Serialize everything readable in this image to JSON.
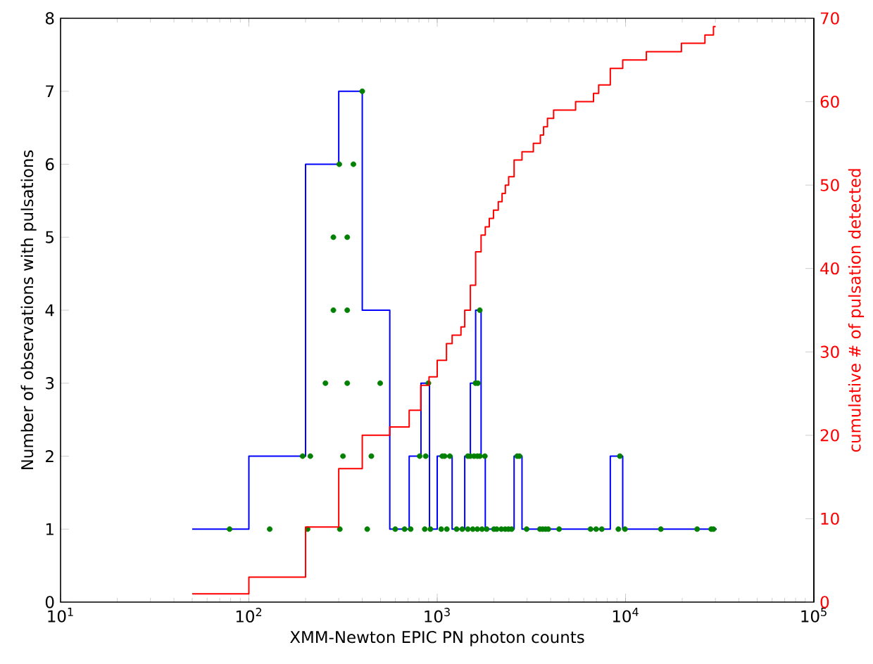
{
  "chart_data": {
    "type": "histogram",
    "xlabel": "XMM-Newton EPIC PN photon counts",
    "ylabel": "Number of observations with pulsations",
    "y2label": "cumulative # of pulsation detected",
    "log": "x",
    "xlim": [
      10,
      100000
    ],
    "xticks": [
      {
        "value": 10,
        "label": "10$^{1}$"
      },
      {
        "value": 100,
        "label": "10$^{2}$"
      },
      {
        "value": 1000,
        "label": "10$^{3}$"
      },
      {
        "value": 10000,
        "label": "10$^{4}$"
      },
      {
        "value": 100000,
        "label": "10$^{5}$"
      }
    ],
    "ylim": [
      0,
      8
    ],
    "yticks": [
      0,
      1,
      2,
      3,
      4,
      5,
      6,
      7,
      8
    ],
    "y2lim": [
      0,
      70
    ],
    "y2ticks": [
      0,
      10,
      20,
      30,
      40,
      50,
      60,
      70
    ],
    "series": [
      {
        "color": "#0000ff",
        "bins": [
          50,
          100,
          200,
          300,
          400,
          560,
          710,
          820,
          910,
          1000,
          1200,
          1400,
          1500,
          1600,
          1710,
          1800,
          2560,
          2820,
          8300,
          9660,
          30500
        ],
        "values": [
          1,
          2,
          6,
          7,
          4,
          1,
          2,
          3,
          1,
          2,
          1,
          2,
          3,
          4,
          2,
          1,
          2,
          1,
          2,
          1
        ]
      },
      {
        "type": "scatter",
        "color": "#008000",
        "marker": "circle",
        "x": [
          79,
          129,
          205,
          304,
          425,
          599,
          671,
          723,
          859,
          920,
          1050,
          1125,
          1268,
          1358,
          1455,
          1545,
          1633,
          1729,
          1832,
          2000,
          2070,
          2190,
          2296,
          2390,
          2483,
          2985,
          3510,
          3630,
          3760,
          3890,
          4440,
          6520,
          6980,
          7480,
          9160,
          9930,
          15400,
          24000,
          28500,
          29300,
          193,
          212,
          316,
          447,
          807,
          869,
          1064,
          1094,
          1167,
          1455,
          1500,
          1570,
          1633,
          1683,
          1791,
          2660,
          2735,
          9330,
          255,
          333,
          498,
          898,
          1597,
          1644,
          281,
          333,
          1683,
          281,
          333,
          302,
          359,
          400
        ],
        "values": [
          1,
          1,
          1,
          1,
          1,
          1,
          1,
          1,
          1,
          1,
          1,
          1,
          1,
          1,
          1,
          1,
          1,
          1,
          1,
          1,
          1,
          1,
          1,
          1,
          1,
          1,
          1,
          1,
          1,
          1,
          1,
          1,
          1,
          1,
          1,
          1,
          1,
          1,
          1,
          1,
          2,
          2,
          2,
          2,
          2,
          2,
          2,
          2,
          2,
          2,
          2,
          2,
          2,
          2,
          2,
          2,
          2,
          2,
          3,
          3,
          3,
          3,
          3,
          3,
          4,
          4,
          4,
          5,
          5,
          6,
          6,
          7
        ]
      },
      {
        "type": "step",
        "axis": "y2",
        "color": "#ff0000",
        "x": [
          50,
          100,
          200,
          300,
          400,
          560,
          710,
          818,
          905,
          1000,
          1120,
          1200,
          1337,
          1400,
          1500,
          1600,
          1710,
          1800,
          1890,
          1990,
          2110,
          2210,
          2300,
          2395,
          2560,
          2820,
          3240,
          3530,
          3670,
          3850,
          4150,
          5430,
          6760,
          7200,
          8300,
          9660,
          12900,
          19800,
          26400,
          29300,
          30100
        ],
        "values": [
          1,
          3,
          9,
          16,
          20,
          21,
          23,
          26,
          27,
          29,
          31,
          32,
          33,
          35,
          38,
          42,
          44,
          45,
          46,
          47,
          48,
          49,
          50,
          51,
          53,
          54,
          55,
          56,
          57,
          58,
          59,
          60,
          61,
          62,
          64,
          65,
          66,
          67,
          68,
          69,
          69
        ]
      }
    ]
  }
}
